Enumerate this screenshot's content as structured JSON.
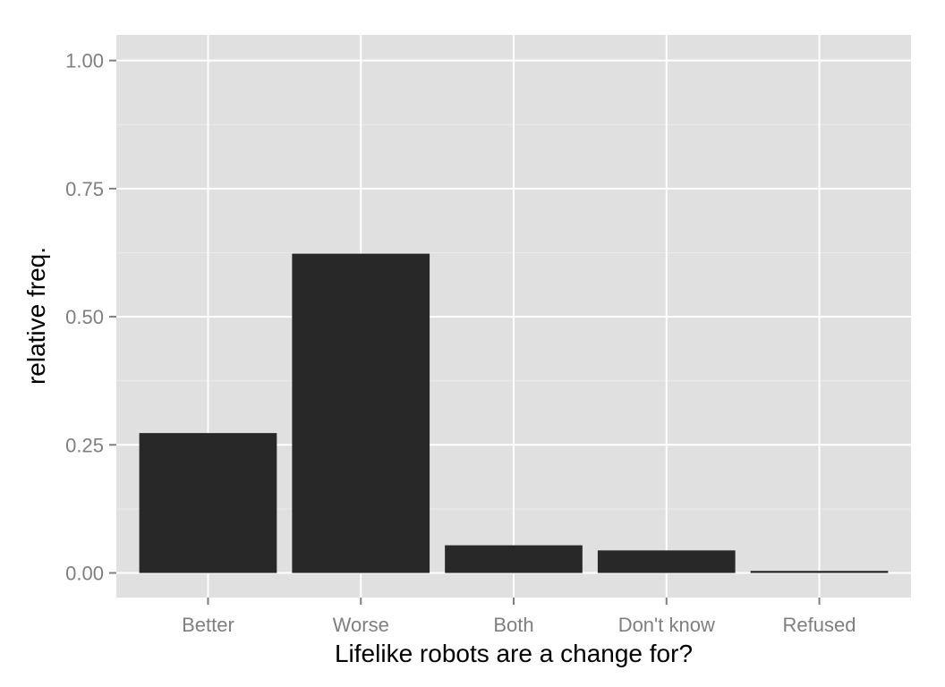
{
  "chart_data": {
    "type": "bar",
    "categories": [
      "Better",
      "Worse",
      "Both",
      "Don't know",
      "Refused"
    ],
    "values": [
      0.273,
      0.623,
      0.054,
      0.044,
      0.004
    ],
    "xlabel": "Lifelike robots are a change for?",
    "ylabel": "relative freq.",
    "ylim": [
      -0.048,
      1.05
    ],
    "yticks": [
      0.0,
      0.25,
      0.5,
      0.75,
      1.0
    ],
    "ytick_labels": [
      "0.00",
      "0.25",
      "0.50",
      "0.75",
      "1.00"
    ],
    "grid": true,
    "legend": "none",
    "colors": {
      "bar": "#282828",
      "panel": "#e0e0e0",
      "grid_major": "#ffffff",
      "grid_minor": "#ebebeb",
      "tick_mark": "#7f7f7f"
    }
  }
}
